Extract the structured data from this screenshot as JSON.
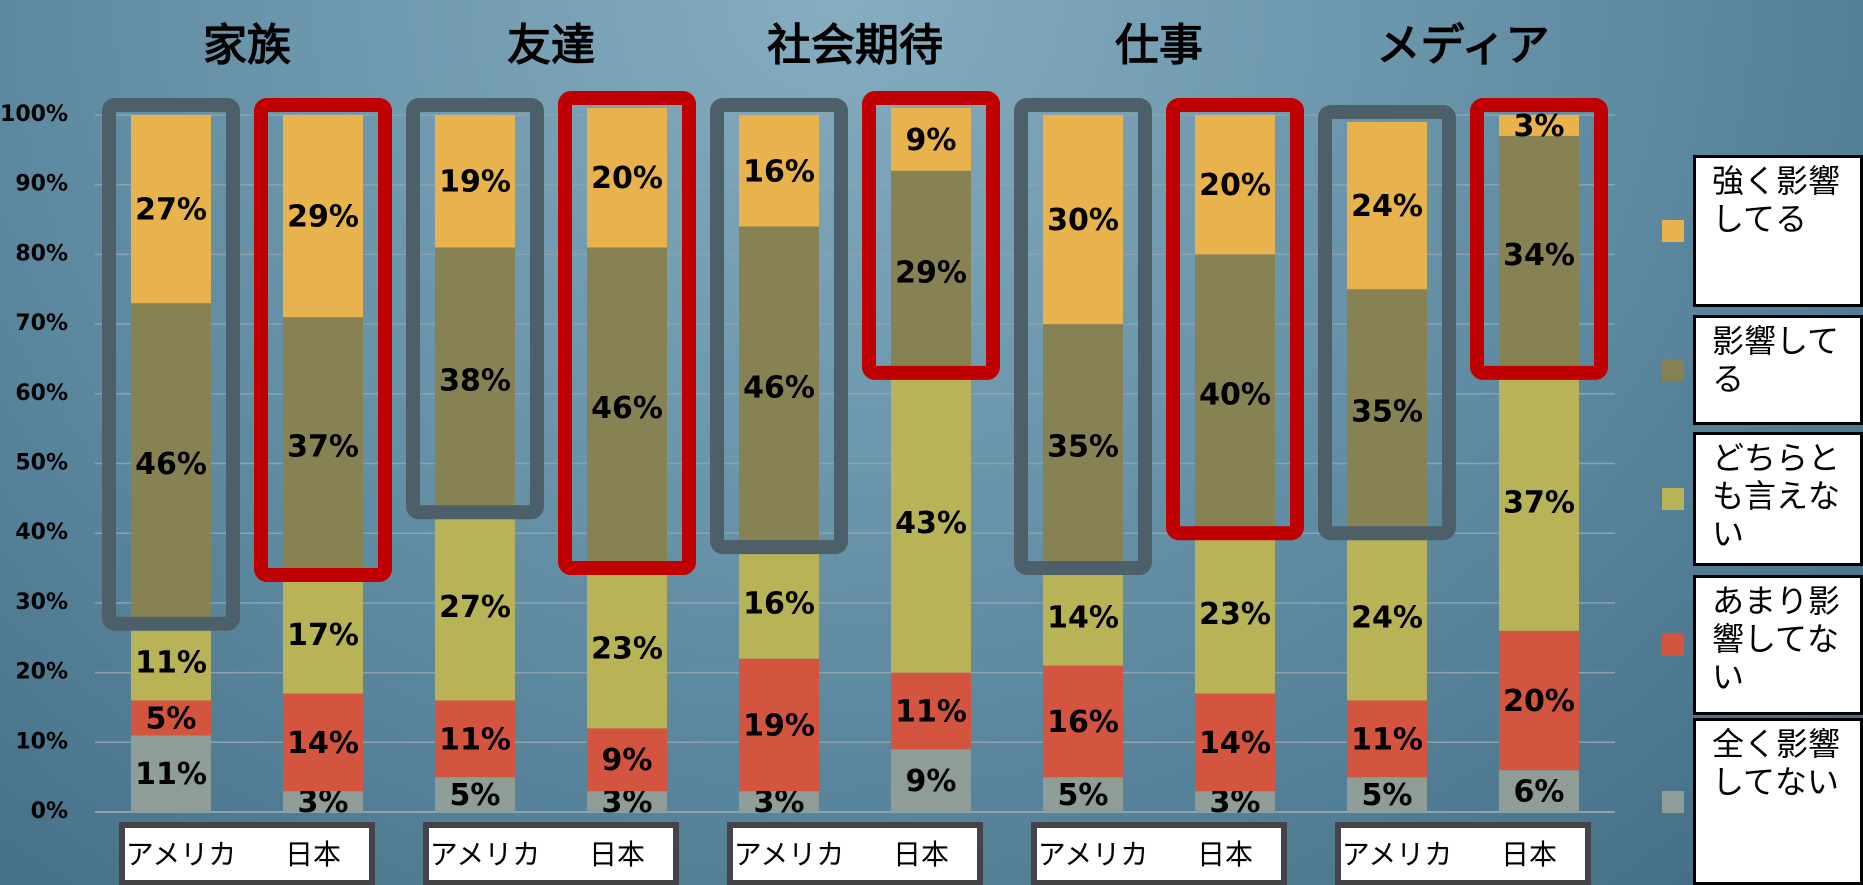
{
  "chart_data": {
    "type": "bar",
    "stacked": true,
    "groups": [
      "家族",
      "友達",
      "社会期待",
      "仕事",
      "メディア"
    ],
    "categories": [
      "アメリカ",
      "日本",
      "アメリカ",
      "日本",
      "アメリカ",
      "日本",
      "アメリカ",
      "日本",
      "アメリカ",
      "日本"
    ],
    "ylim": [
      0,
      100
    ],
    "yticks": [
      {
        "value": 0,
        "label": "0%"
      },
      {
        "value": 10,
        "label": "10%"
      },
      {
        "value": 20,
        "label": "20%"
      },
      {
        "value": 30,
        "label": "30%"
      },
      {
        "value": 40,
        "label": "40%"
      },
      {
        "value": 50,
        "label": "50%"
      },
      {
        "value": 60,
        "label": "60%"
      },
      {
        "value": 70,
        "label": "70%"
      },
      {
        "value": 80,
        "label": "80%"
      },
      {
        "value": 90,
        "label": "90%"
      },
      {
        "value": 100,
        "label": "100%"
      }
    ],
    "series": [
      {
        "name": "全く影響してない",
        "color": "#8e9e96",
        "values": [
          11,
          3,
          5,
          3,
          3,
          9,
          5,
          3,
          5,
          6
        ],
        "value_labels": [
          "11%",
          "3%",
          "5%",
          "3%",
          "3%",
          "9%",
          "5%",
          "3%",
          "5%",
          "6%"
        ]
      },
      {
        "name": "あまり影響してない",
        "color": "#d4553f",
        "values": [
          5,
          14,
          11,
          9,
          19,
          11,
          16,
          14,
          11,
          20
        ],
        "value_labels": [
          "5%",
          "14%",
          "11%",
          "9%",
          "19%",
          "11%",
          "16%",
          "14%",
          "11%",
          "20%"
        ]
      },
      {
        "name": "どちらとも言えない",
        "color": "#b9b358",
        "values": [
          11,
          17,
          27,
          23,
          16,
          43,
          14,
          23,
          24,
          37
        ],
        "value_labels": [
          "11%",
          "17%",
          "27%",
          "23%",
          "16%",
          "43%",
          "14%",
          "23%",
          "24%",
          "37%"
        ]
      },
      {
        "name": "影響してる",
        "color": "#878254",
        "values": [
          46,
          37,
          38,
          46,
          46,
          29,
          35,
          40,
          35,
          34
        ],
        "value_labels": [
          "46%",
          "37%",
          "38%",
          "46%",
          "46%",
          "29%",
          "35%",
          "40%",
          "35%",
          "34%"
        ]
      },
      {
        "name": "強く影響してる",
        "color": "#e8b24c",
        "values": [
          27,
          29,
          19,
          20,
          16,
          9,
          30,
          20,
          24,
          3
        ],
        "value_labels": [
          "27%",
          "29%",
          "19%",
          "20%",
          "16%",
          "9%",
          "30%",
          "20%",
          "24%",
          "3%"
        ]
      }
    ]
  }
}
